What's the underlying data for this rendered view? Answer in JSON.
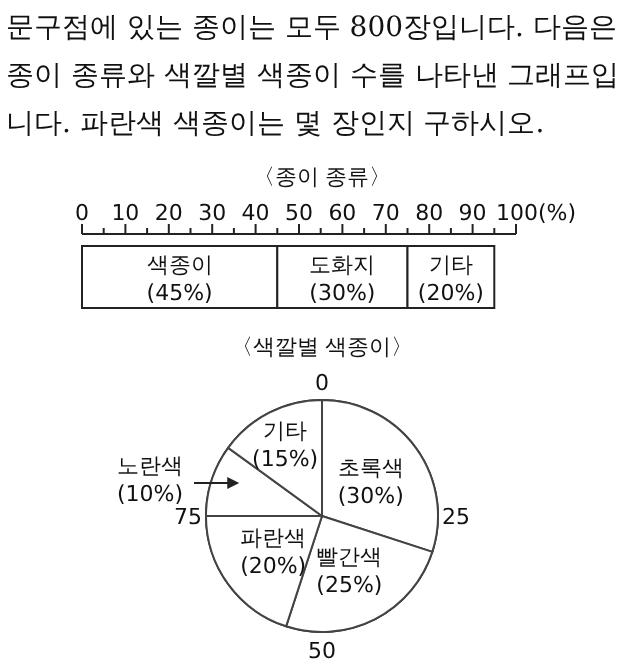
{
  "chart_data": [
    {
      "type": "bar",
      "stacked": true,
      "orientation": "horizontal",
      "title": "〈종이 종류〉",
      "annotations": [
        "문구점에 있는 종이는 모두 800장입니다. 다음은 종이 종류와 색깔별 색종이 수를 나타낸 그래프입니다. 파란색 색종이는 몇 장인지 구하시오."
      ],
      "categories": [
        null
      ],
      "series": [
        {
          "name": "색종이",
          "color": "#ffffff",
          "values": [
            45
          ],
          "value_labels": [
            "(45%)"
          ]
        },
        {
          "name": "도화지",
          "color": "#ffffff",
          "values": [
            30
          ],
          "value_labels": [
            "(30%)"
          ]
        },
        {
          "name": "기타",
          "color": "#ffffff",
          "values": [
            20
          ],
          "value_labels": [
            "(20%)"
          ]
        }
      ],
      "xlim": [
        0,
        100
      ],
      "xticks": [
        0,
        10,
        20,
        30,
        40,
        50,
        60,
        70,
        80,
        90,
        {
          "value": 100,
          "label": "100(%)"
        }
      ]
    },
    {
      "type": "pie",
      "title": "〈색깔별 색종이〉",
      "categories": [
        "초록색",
        "빨간색",
        "파란색",
        "노란색",
        "기타"
      ],
      "values": [
        30,
        25,
        20,
        10,
        15
      ],
      "colors": [
        "#ffffff",
        "#ffffff",
        "#ffffff",
        "#ffffff",
        "#ffffff"
      ],
      "value_labels": [
        "(30%)",
        "(25%)",
        "(20%)",
        "(10%)",
        "(15%)"
      ],
      "annotations": [
        "0",
        "25",
        "50",
        "75"
      ]
    }
  ]
}
